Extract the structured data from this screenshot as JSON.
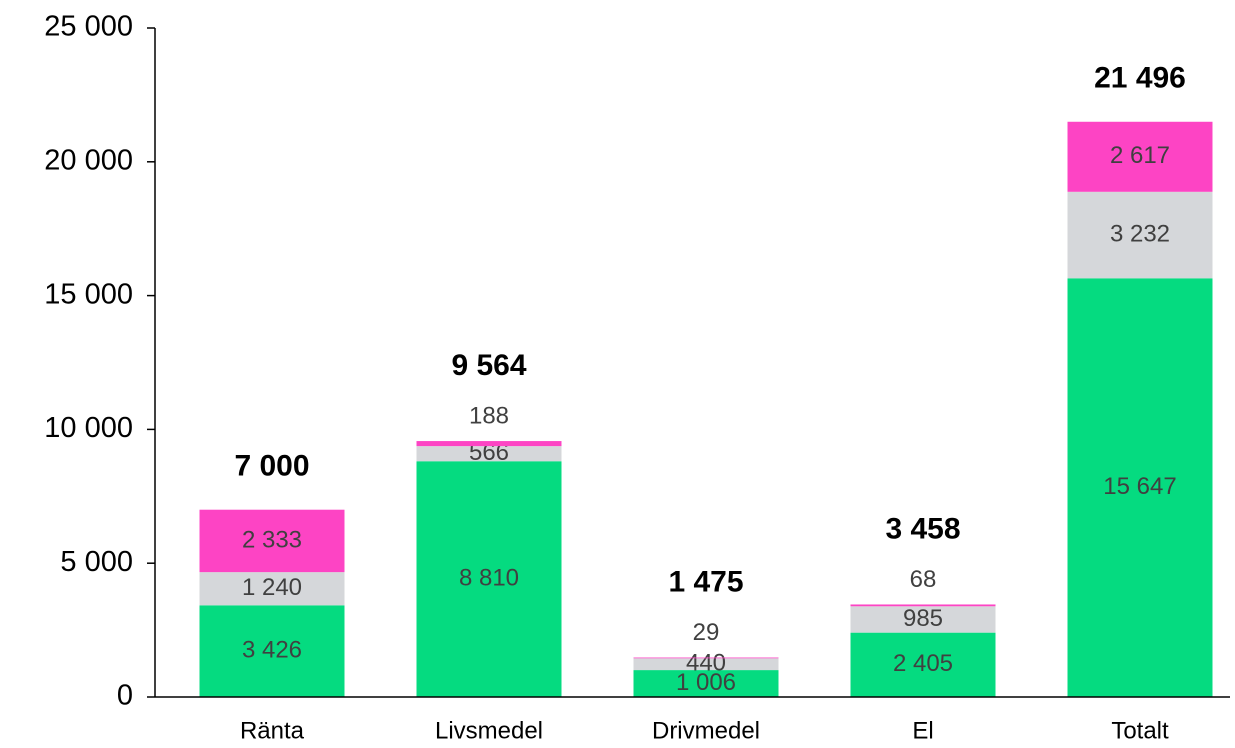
{
  "chart_data": {
    "type": "stacked_bar",
    "categories": [
      "Ränta",
      "Livsmedel",
      "Drivmedel",
      "El",
      "Totalt"
    ],
    "series": [
      {
        "color": "#05db80",
        "values": [
          3426,
          8810,
          1006,
          2405,
          15647
        ],
        "value_labels": [
          "3 426",
          "8 810",
          "1 006",
          "2 405",
          "15 647"
        ]
      },
      {
        "color": "#d5d7da",
        "values": [
          1240,
          566,
          440,
          985,
          3232
        ],
        "value_labels": [
          "1 240",
          "566",
          "440",
          "985",
          "3 232"
        ]
      },
      {
        "color": "#fd44c4",
        "values": [
          2333,
          188,
          29,
          68,
          2617
        ],
        "value_labels": [
          "2 333",
          "188",
          "29",
          "68",
          "2 617"
        ]
      }
    ],
    "totals": [
      7000,
      9564,
      1475,
      3458,
      21496
    ],
    "total_labels": [
      "7 000",
      "9 564",
      "1 475",
      "3 458",
      "21 496"
    ],
    "ylim": [
      0,
      25000
    ],
    "yticks": [
      0,
      {
        "value": 5000,
        "label": "5 000"
      },
      {
        "value": 10000,
        "label": "10 000"
      },
      {
        "value": 15000,
        "label": "15 000"
      },
      {
        "value": 20000,
        "label": "20 000"
      },
      {
        "value": 25000,
        "label": "25 000"
      }
    ]
  }
}
